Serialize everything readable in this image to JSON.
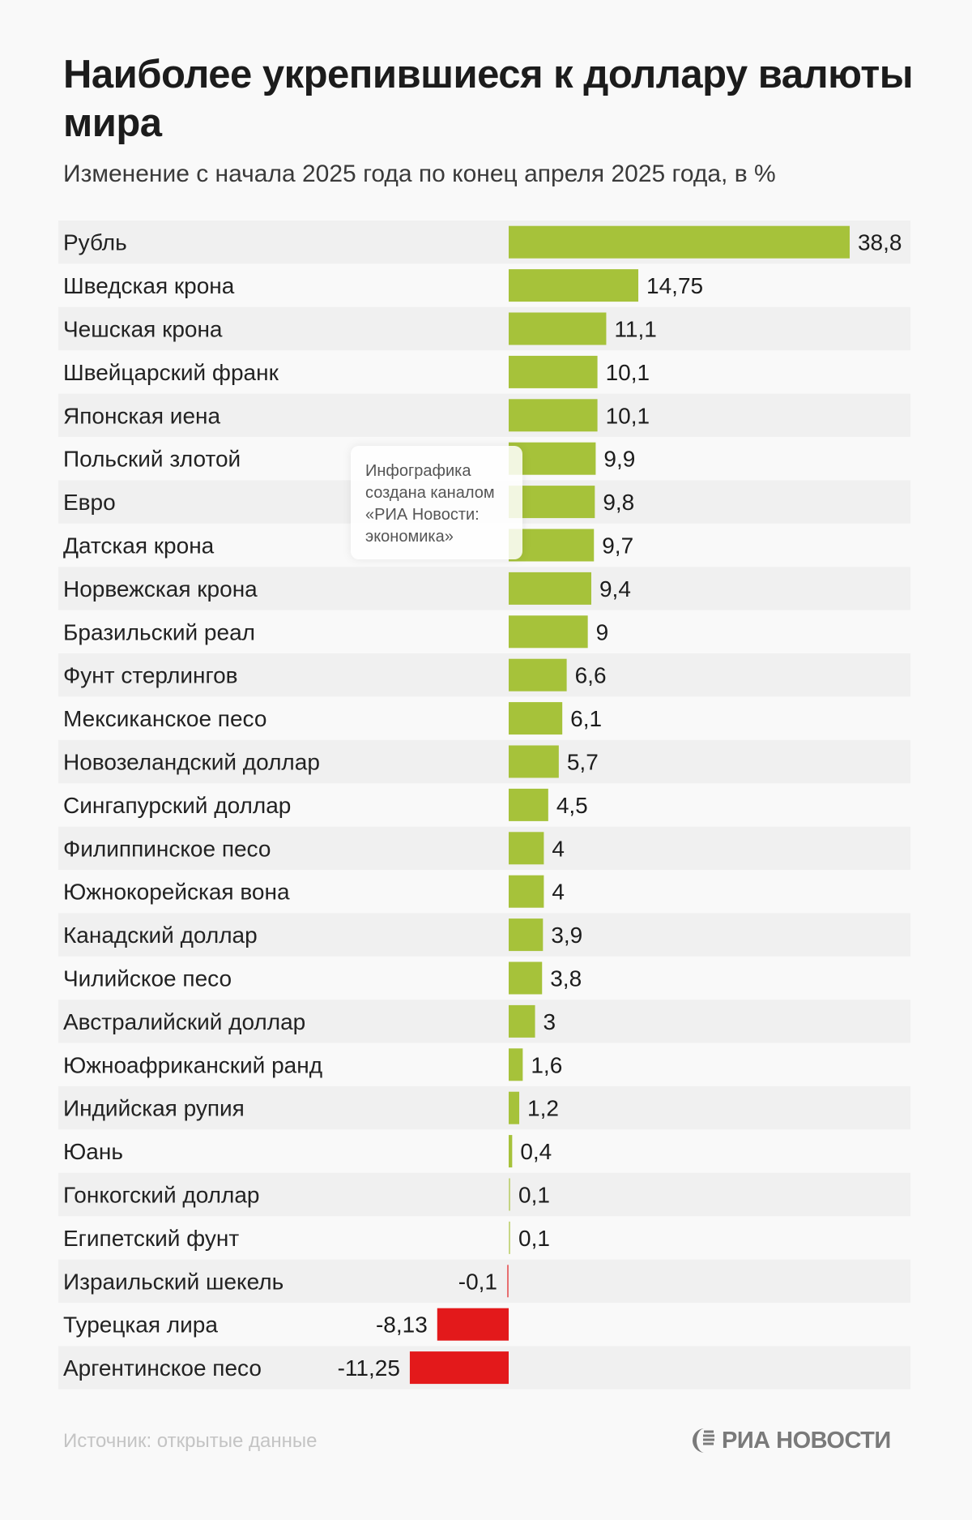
{
  "header": {
    "title": "Наиболее укрепившиеся к доллару валюты мира",
    "subtitle": "Изменение с начала 2025 года по конец апреля 2025 года, в %"
  },
  "chart_data": {
    "type": "bar",
    "orientation": "horizontal",
    "title": "Наиболее укрепившиеся к доллару валюты мира",
    "subtitle": "Изменение с начала 2025 года по конец апреля 2025 года, в %",
    "categories": [
      "Рубль",
      "Шведская крона",
      "Чешская крона",
      "Швейцарский франк",
      "Японская иена",
      "Польский злотой",
      "Евро",
      "Датская крона",
      "Норвежская крона",
      "Бразильский реал",
      "Фунт стерлингов",
      "Мексиканское песо",
      "Новозеландский доллар",
      "Сингапурский доллар",
      "Филиппинское песо",
      "Южнокорейская вона",
      "Канадский доллар",
      "Чилийское песо",
      "Австралийский доллар",
      "Южноафриканский ранд",
      "Индийская рупия",
      "Юань",
      "Гонкогский доллар",
      "Египетский фунт",
      "Израильский шекель",
      "Турецкая лира",
      "Аргентинское песо"
    ],
    "values": [
      38.8,
      14.75,
      11.1,
      10.1,
      10.1,
      9.9,
      9.8,
      9.7,
      9.4,
      9,
      6.6,
      6.1,
      5.7,
      4.5,
      4,
      4,
      3.9,
      3.8,
      3,
      1.6,
      1.2,
      0.4,
      0.1,
      0.1,
      -0.1,
      -8.13,
      -11.25
    ],
    "value_labels": [
      "38,8",
      "14,75",
      "11,1",
      "10,1",
      "10,1",
      "9,9",
      "9,8",
      "9,7",
      "9,4",
      "9",
      "6,6",
      "6,1",
      "5,7",
      "4,5",
      "4",
      "4",
      "3,9",
      "3,8",
      "3",
      "1,6",
      "1,2",
      "0,4",
      "0,1",
      "0,1",
      "-0,1",
      "-8,13",
      "-11,25"
    ],
    "colors": {
      "positive": "#a6c23a",
      "negative": "#e3191b",
      "band": "#f0f0f0"
    },
    "grid": false,
    "legend": "none"
  },
  "note": {
    "lines": [
      "Инфографика",
      "создана каналом",
      "«РИА Новости:",
      "экономика»"
    ]
  },
  "footer": {
    "source": "Источник: открытые данные",
    "logo": "РИА НОВОСТИ",
    "logo_icon": "ria-globe-icon"
  }
}
